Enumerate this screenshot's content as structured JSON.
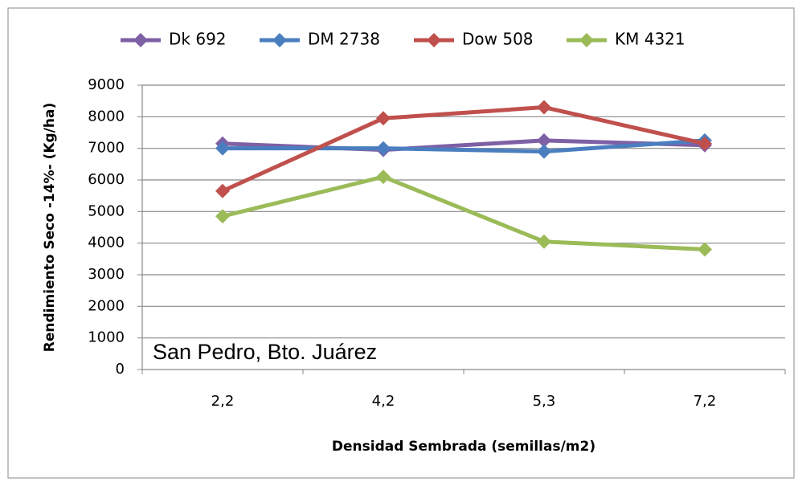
{
  "chart_data": {
    "type": "line",
    "x_label": "Densidad Sembrada (semillas/m2)",
    "y_label": "Rendimiento Seco -14%- (Kg/ha)",
    "annotation": "San Pedro, Bto. Juárez",
    "categories": [
      "2,2",
      "4,2",
      "5,3",
      "7,2"
    ],
    "series": [
      {
        "name": "Dk 692",
        "color": "#7e60a5",
        "values": [
          7150,
          6950,
          7250,
          7100
        ]
      },
      {
        "name": "DM 2738",
        "color": "#4a7ebf",
        "values": [
          7000,
          7000,
          6900,
          7250
        ]
      },
      {
        "name": "Dow 508",
        "color": "#c0504d",
        "values": [
          5650,
          7950,
          8300,
          7150
        ]
      },
      {
        "name": "KM 4321",
        "color": "#9bbb59",
        "values": [
          4850,
          6100,
          4050,
          3800
        ]
      }
    ],
    "ylim": [
      0,
      9000
    ],
    "yticks": [
      0,
      1000,
      2000,
      3000,
      4000,
      5000,
      6000,
      7000,
      8000,
      9000
    ],
    "grid": true,
    "legend": "top"
  }
}
